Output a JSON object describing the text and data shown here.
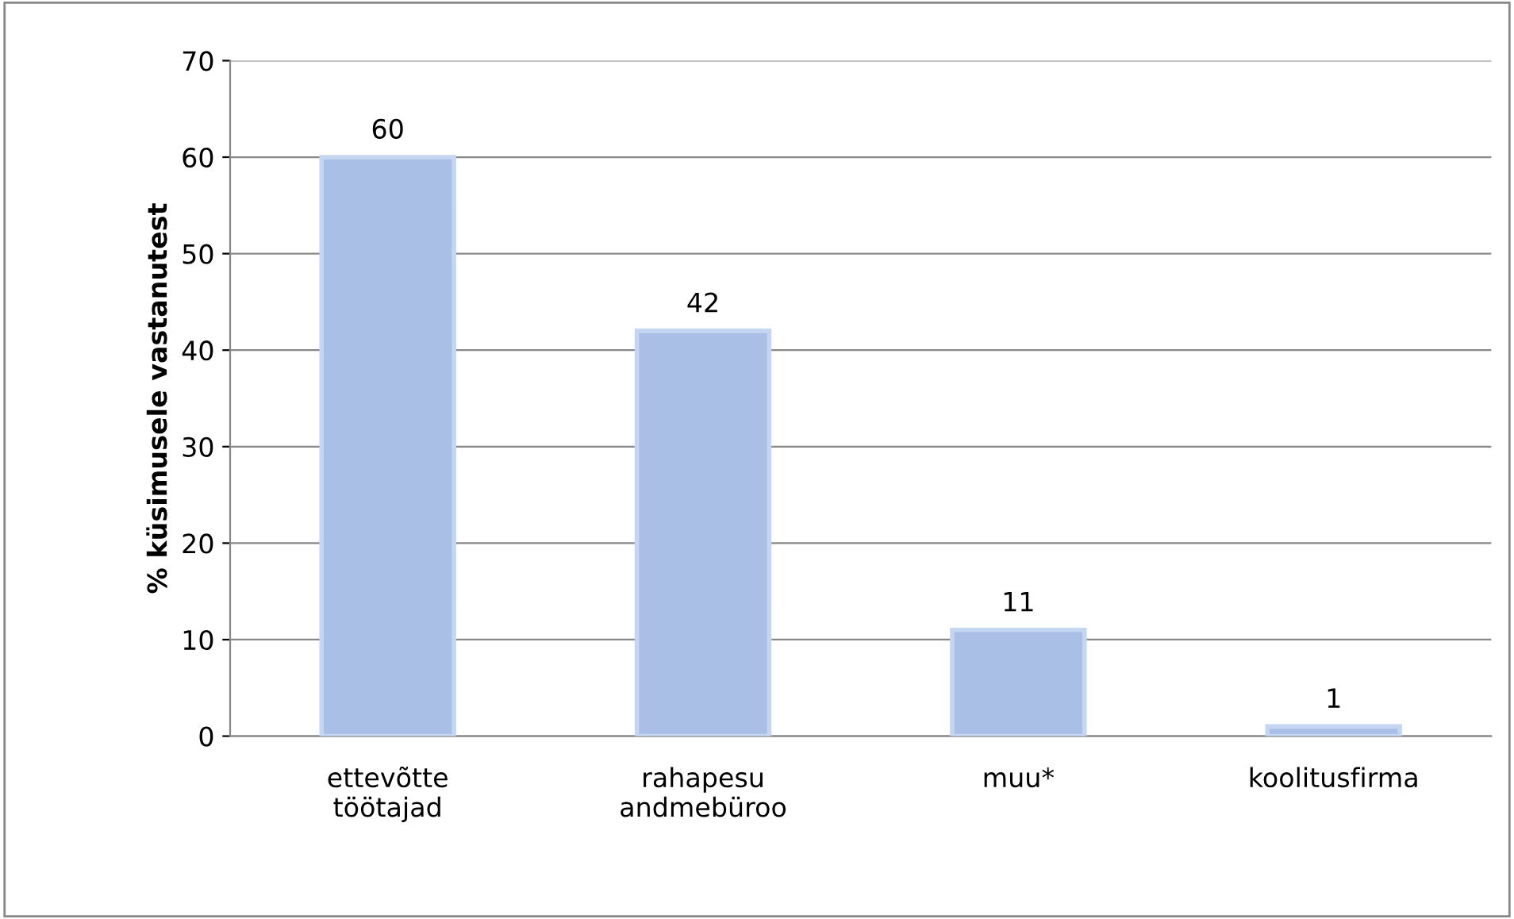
{
  "chart_data": {
    "type": "bar",
    "ylabel": "% küsimusele vastanutest",
    "categories": [
      "ettevõtte\ntöötajad",
      "rahapesu\nandmebüroo",
      "muu*",
      "koolitusfirma"
    ],
    "values": [
      60,
      42,
      11,
      1
    ],
    "color": "#a9bfe6",
    "ylim": [
      0,
      70
    ],
    "yticks": [
      0,
      10,
      20,
      30,
      40,
      50,
      60,
      70
    ],
    "grid": "y",
    "data_labels": true,
    "legend": false
  }
}
